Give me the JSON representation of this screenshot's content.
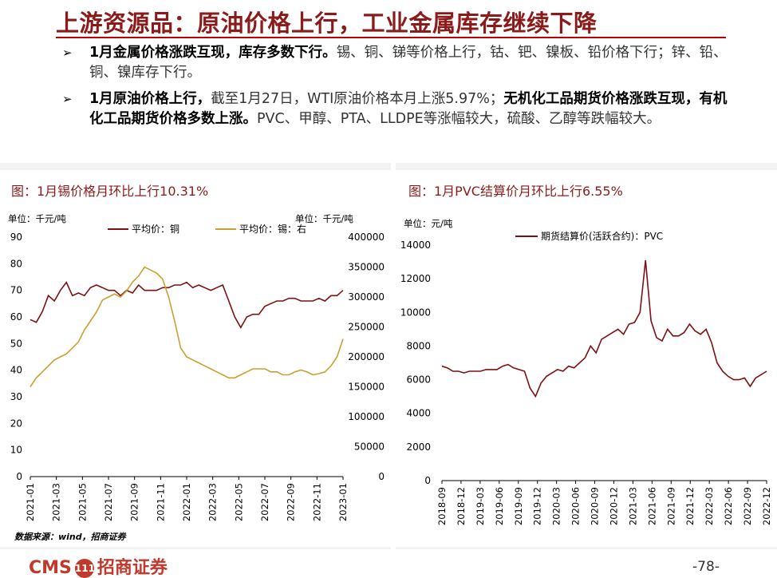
{
  "page": {
    "title": "上游资源品：原油价格上行，工业金属库存继续下降",
    "bullet1": {
      "bold": "1月金属价格涨跌互现，库存多数下行。",
      "text": "锡、铜、锑等价格上行，钴、钯、镍板、铅价格下行；锌、铅、铜、镍库存下行。"
    },
    "bullet2": {
      "bold1": "1月原油价格上行，",
      "text1": "截至1月27日，WTI原油价格本月上涨5.97%；",
      "bold2": "无机化工品期货价格涨跌互现，有机化工品期货价格多数上涨。",
      "text2": "PVC、甲醇、PTA、LLDPE等涨幅较大，硫酸、乙醇等跌幅较大。"
    },
    "arrow": "➢",
    "source": "数据来源：wind，招商证券",
    "logo_cms": "CMS",
    "logo_badge": "111",
    "logo_name": "招商证券",
    "page_number": "-78-"
  },
  "colors": {
    "accent": "#8b1a1a",
    "copper": "#7b1113",
    "tin": "#c8a032"
  },
  "chart_data": [
    {
      "type": "line",
      "title": "图：1月锡价格月环比上行10.31%",
      "unit_left": "单位：千元/吨",
      "unit_right": "单位：千元/吨",
      "ylim_left": [
        0,
        90
      ],
      "ylim_right": [
        0,
        400000
      ],
      "yticks_left": [
        "90",
        "80",
        "70",
        "60",
        "50",
        "40",
        "30",
        "20",
        "10",
        "0"
      ],
      "yticks_right": [
        "400000",
        "350000",
        "300000",
        "250000",
        "200000",
        "150000",
        "100000",
        "50000",
        "0"
      ],
      "x_ticks": [
        "2021-01",
        "2021-03",
        "2021-05",
        "2021-07",
        "2021-09",
        "2021-11",
        "2022-01",
        "2022-03",
        "2022-05",
        "2022-07",
        "2022-09",
        "2022-11",
        "2023-01"
      ],
      "series": [
        {
          "name": "平均价：铜",
          "axis": "left",
          "values": [
            59,
            58,
            62,
            68,
            66,
            70,
            73,
            68,
            69,
            68,
            71,
            72,
            71,
            70,
            70,
            68,
            70,
            69,
            72,
            70,
            70,
            70,
            71,
            71,
            72,
            72,
            73,
            71,
            72,
            71,
            70,
            71,
            72,
            66,
            60,
            56,
            60,
            61,
            61,
            64,
            65,
            66,
            66,
            67,
            67,
            66,
            66,
            66,
            67,
            66,
            68,
            68,
            70
          ]
        },
        {
          "name": "平均价：锡：右",
          "axis": "right",
          "values": [
            150000,
            165000,
            175000,
            185000,
            195000,
            200000,
            205000,
            215000,
            225000,
            245000,
            260000,
            275000,
            295000,
            300000,
            305000,
            300000,
            310000,
            325000,
            335000,
            350000,
            345000,
            340000,
            330000,
            300000,
            260000,
            215000,
            200000,
            195000,
            190000,
            185000,
            180000,
            175000,
            170000,
            165000,
            165000,
            170000,
            175000,
            180000,
            180000,
            180000,
            175000,
            175000,
            170000,
            170000,
            175000,
            178000,
            175000,
            170000,
            172000,
            175000,
            185000,
            200000,
            230000
          ]
        }
      ]
    },
    {
      "type": "line",
      "title": "图：1月PVC结算价月环比上行6.55%",
      "unit_left": "单位：元/吨",
      "ylim": [
        0,
        14000
      ],
      "yticks": [
        "14000",
        "12000",
        "10000",
        "8000",
        "6000",
        "4000",
        "2000",
        "0"
      ],
      "x_ticks": [
        "2018-09",
        "2018-12",
        "2019-03",
        "2019-06",
        "2019-09",
        "2019-12",
        "2020-03",
        "2020-06",
        "2020-09",
        "2020-12",
        "2021-03",
        "2021-06",
        "2021-09",
        "2021-12",
        "2022-03",
        "2022-06",
        "2022-09",
        "2022-12"
      ],
      "series": [
        {
          "name": "期货结算价(活跃合约)：PVC",
          "values": [
            6800,
            6700,
            6500,
            6500,
            6400,
            6500,
            6500,
            6500,
            6600,
            6600,
            6600,
            6800,
            6900,
            6700,
            6600,
            6500,
            5500,
            5000,
            5800,
            6200,
            6400,
            6600,
            6500,
            6800,
            6700,
            7000,
            7300,
            8000,
            7600,
            8400,
            8600,
            8800,
            9000,
            8700,
            9300,
            9400,
            10000,
            13100,
            9500,
            8500,
            8300,
            9000,
            8600,
            8600,
            8800,
            9300,
            8900,
            8700,
            9000,
            8200,
            7000,
            6500,
            6200,
            6000,
            6000,
            6100,
            5600,
            6100,
            6300,
            6500
          ]
        }
      ]
    }
  ]
}
